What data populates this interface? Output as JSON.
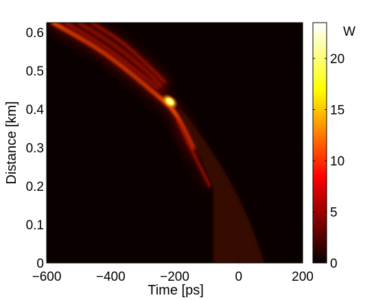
{
  "chart_data": {
    "type": "heatmap",
    "title": "",
    "xlabel": "Time [ps]",
    "ylabel": "Distance [km]",
    "xlim": [
      -600,
      200
    ],
    "ylim": [
      0,
      0.625
    ],
    "x_ticks": [
      -600,
      -400,
      -200,
      0,
      200
    ],
    "x_tick_labels": [
      "−600",
      "−400",
      "−200",
      "0",
      "200"
    ],
    "y_ticks": [
      0,
      0.1,
      0.2,
      0.3,
      0.4,
      0.5,
      0.6
    ],
    "y_tick_labels": [
      "0",
      "0.1",
      "0.2",
      "0.3",
      "0.4",
      "0.5",
      "0.6"
    ],
    "colormap": "hot",
    "colorbar": {
      "label": "W",
      "range": [
        0,
        23.5
      ],
      "ticks": [
        0,
        5,
        10,
        15,
        20
      ],
      "tick_labels": [
        "0",
        "5",
        "10",
        "15",
        "20"
      ]
    },
    "features": [
      {
        "description_key": "main-strand",
        "points": [
          [
            -580,
            0.625
          ],
          [
            -440,
            0.56
          ],
          [
            -330,
            0.49
          ],
          [
            -260,
            0.44
          ],
          [
            -210,
            0.405
          ],
          [
            -175,
            0.36
          ],
          [
            -140,
            0.3
          ]
        ],
        "peak_power": 23,
        "peak_at": [
          -215,
          0.42
        ]
      },
      {
        "description_key": "strand-2",
        "points": [
          [
            -540,
            0.625
          ],
          [
            -420,
            0.565
          ],
          [
            -320,
            0.5
          ],
          [
            -250,
            0.455
          ]
        ],
        "peak_power": 8
      },
      {
        "description_key": "strand-3",
        "points": [
          [
            -500,
            0.625
          ],
          [
            -400,
            0.575
          ],
          [
            -300,
            0.51
          ],
          [
            -240,
            0.46
          ]
        ],
        "peak_power": 6
      },
      {
        "description_key": "strand-4",
        "points": [
          [
            -460,
            0.625
          ],
          [
            -370,
            0.58
          ],
          [
            -290,
            0.52
          ],
          [
            -230,
            0.47
          ]
        ],
        "peak_power": 4
      },
      {
        "description_key": "dispersive-tail",
        "points": [
          [
            -190,
            0.37
          ],
          [
            -150,
            0.3
          ],
          [
            -120,
            0.25
          ],
          [
            -90,
            0.2
          ]
        ],
        "peak_power": 4
      },
      {
        "description_key": "broad-background",
        "outer_edge": [
          [
            -200,
            0.42
          ],
          [
            -80,
            0.3
          ],
          [
            20,
            0.17
          ],
          [
            80,
            0
          ]
        ],
        "inner_edge": [
          [
            -80,
            0.2
          ],
          [
            -80,
            0
          ]
        ],
        "peak_power": 1.5
      }
    ]
  }
}
